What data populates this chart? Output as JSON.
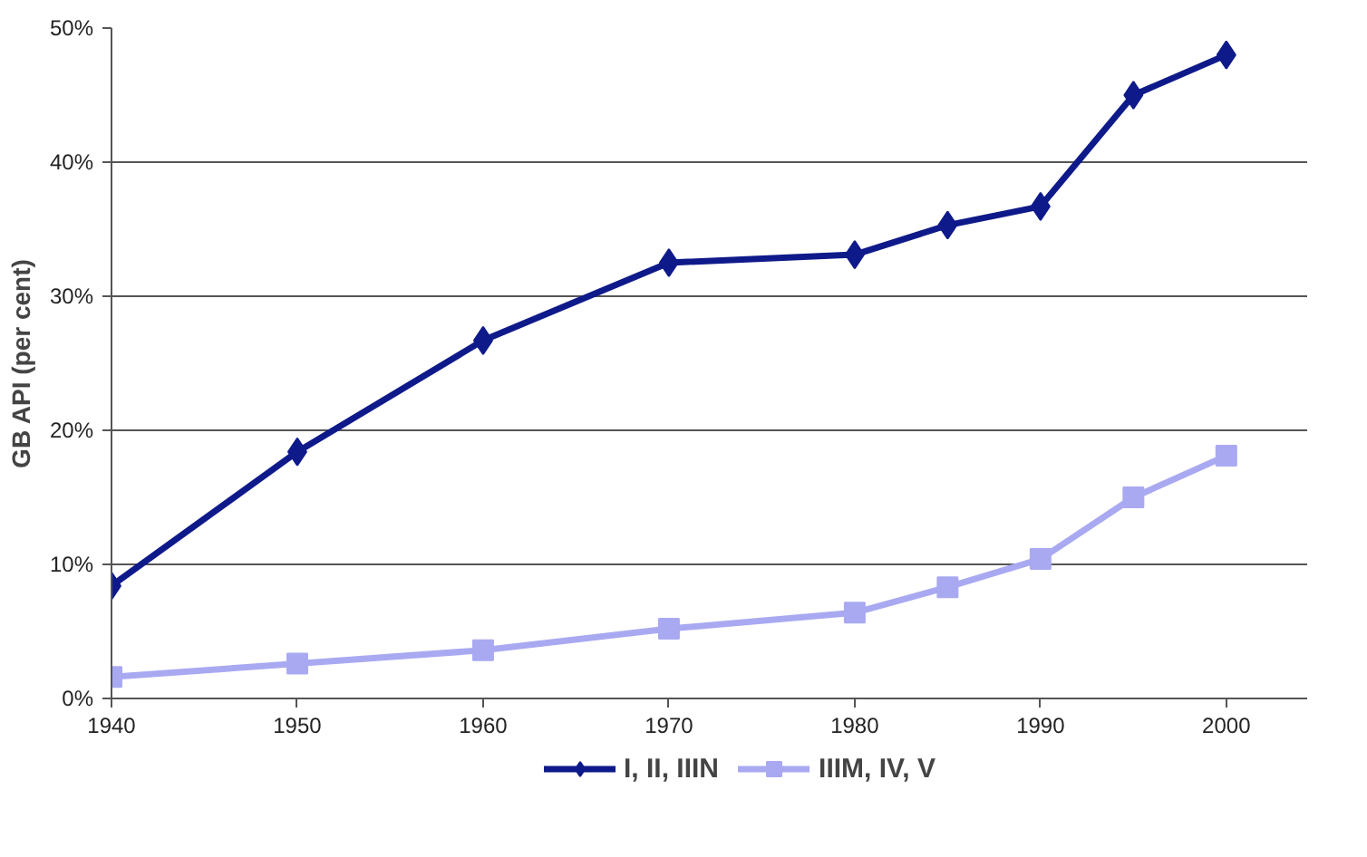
{
  "chart_data": {
    "type": "line",
    "ylabel": "GB API (per cent)",
    "x": [
      1940,
      1950,
      1960,
      1970,
      1980,
      1985,
      1990,
      1995,
      2000
    ],
    "series": [
      {
        "name": "I, II, IIIN",
        "color": "#0f1a8a",
        "marker": "diamond",
        "values": [
          8.4,
          18.4,
          26.7,
          32.5,
          33.1,
          35.3,
          36.7,
          45.0,
          48.0
        ]
      },
      {
        "name": "IIIM, IV, V",
        "color": "#a9a9f2",
        "marker": "square",
        "values": [
          1.6,
          2.6,
          3.6,
          5.2,
          6.4,
          8.3,
          10.4,
          15.0,
          18.1
        ]
      }
    ],
    "xlim": [
      1940,
      2004.4
    ],
    "xticks": [
      1940,
      1950,
      1960,
      1970,
      1980,
      1990,
      2000
    ],
    "ylim": [
      0,
      50
    ],
    "yticks": [
      {
        "value": 0,
        "label": "0%"
      },
      {
        "value": 10,
        "label": "10%"
      },
      {
        "value": 20,
        "label": "20%"
      },
      {
        "value": 30,
        "label": "30%"
      },
      {
        "value": 40,
        "label": "40%"
      },
      {
        "value": 50,
        "label": "50%"
      }
    ],
    "grid": "y",
    "legend": "bottom",
    "line_style": "solid"
  }
}
